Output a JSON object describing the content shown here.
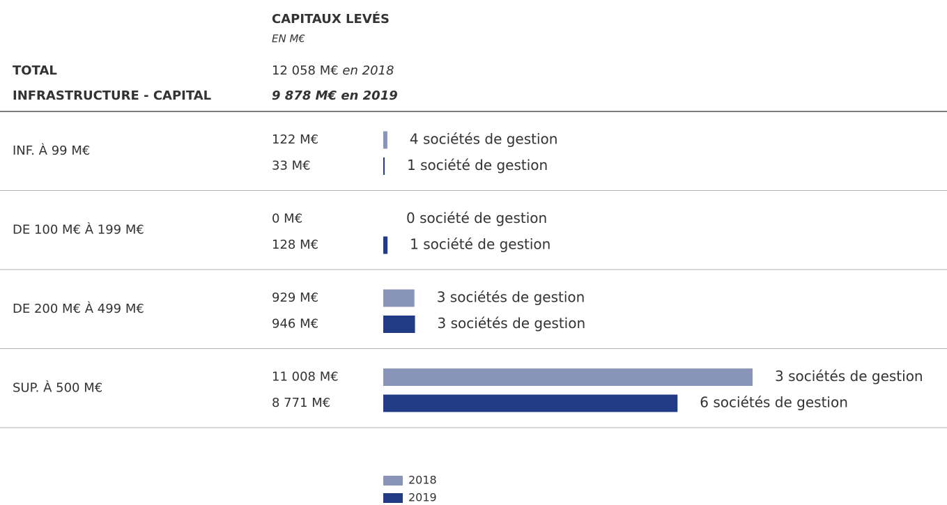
{
  "chart_data": {
    "type": "bar",
    "orientation": "horizontal",
    "title": "CAPITAUX LEVÉS",
    "subtitle": "EN M€",
    "row_header": [
      "TOTAL",
      "INFRASTRUCTURE - CAPITAL"
    ],
    "totals": [
      {
        "label": "12 058 M€",
        "suffix": "en 2018"
      },
      {
        "label": "9 878 M€",
        "suffix": "en 2019"
      }
    ],
    "categories": [
      "INF. À 99 M€",
      "DE 100 M€ À 199 M€",
      "DE 200 M€ À 499 M€",
      "SUP. À 500 M€"
    ],
    "series": [
      {
        "name": "2018",
        "color": "#8895b8",
        "values": [
          122,
          0,
          929,
          11008
        ],
        "value_labels": [
          "122 M€",
          "0 M€",
          "929 M€",
          "11 008 M€"
        ],
        "count_labels": [
          "4 sociétés de gestion",
          "0 société de gestion",
          "3 sociétés de gestion",
          "3 sociétés de gestion"
        ]
      },
      {
        "name": "2019",
        "color": "#213c84",
        "values": [
          33,
          128,
          946,
          8771
        ],
        "value_labels": [
          "33 M€",
          "128 M€",
          "946 M€",
          "8 771 M€"
        ],
        "count_labels": [
          "1 société de gestion",
          "1 société de gestion",
          "3 sociétés de gestion",
          "6 sociétés de gestion"
        ]
      }
    ],
    "legend": "bottom"
  }
}
